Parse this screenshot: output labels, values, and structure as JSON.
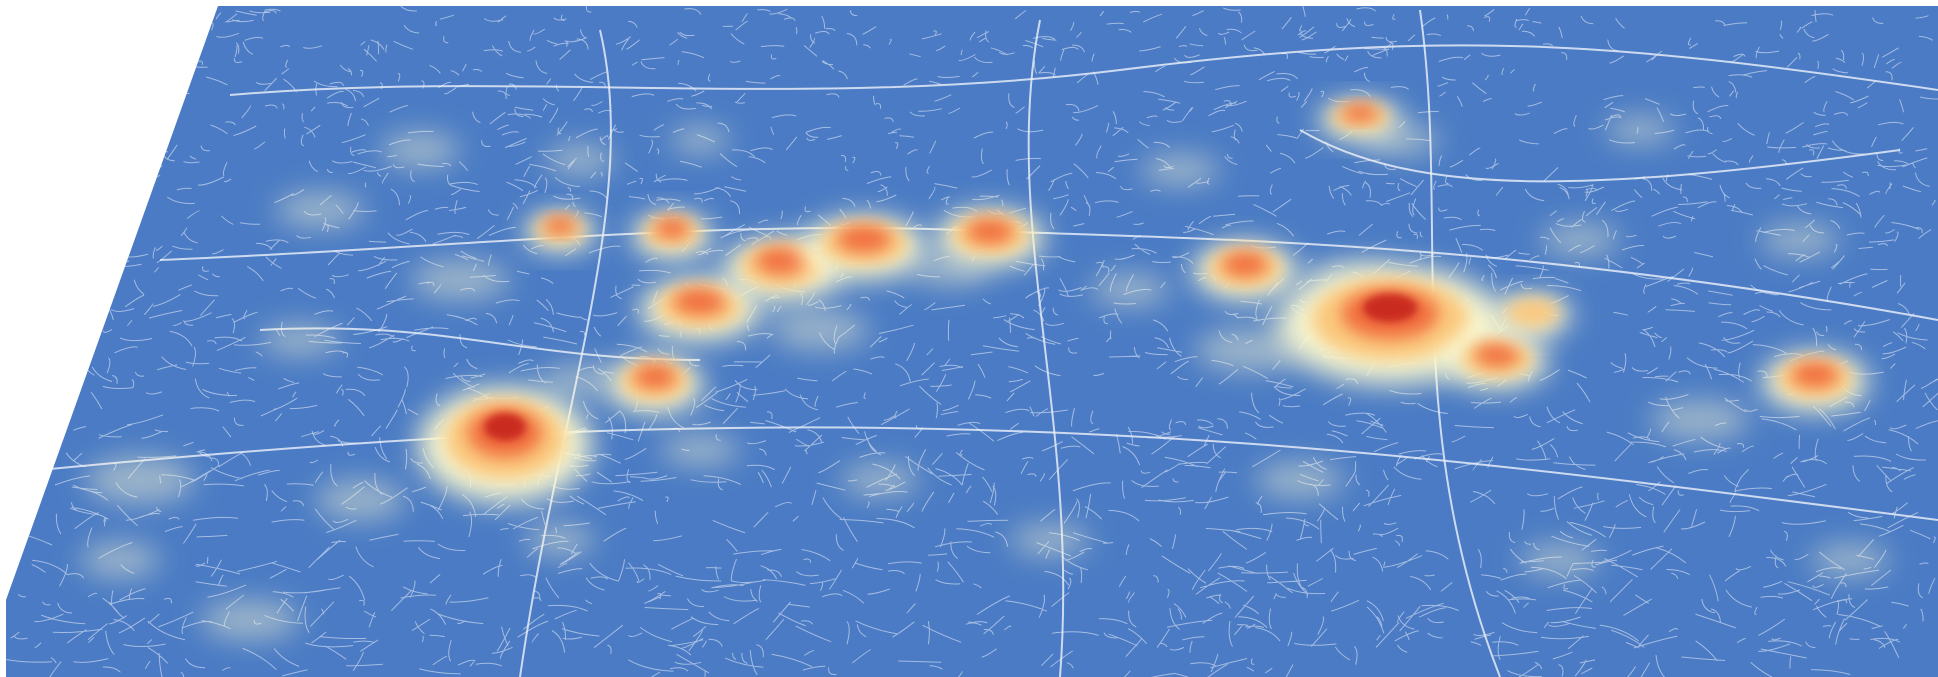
{
  "map": {
    "view": "perspective-3d",
    "base_color": "#4a7bc4",
    "street_color": "#eef3fb",
    "heat_colors": {
      "low": "#fffbd0",
      "mid": "#fbc77a",
      "high": "#f06a3c",
      "peak": "#c8261e"
    },
    "hotspots": [
      {
        "label": "hotspot-1",
        "intensity": 1.0
      },
      {
        "label": "hotspot-2",
        "intensity": 0.55
      },
      {
        "label": "hotspot-3",
        "intensity": 0.65
      },
      {
        "label": "hotspot-4",
        "intensity": 0.7
      },
      {
        "label": "hotspot-5",
        "intensity": 0.7
      },
      {
        "label": "hotspot-6",
        "intensity": 0.75
      },
      {
        "label": "hotspot-7",
        "intensity": 0.75
      },
      {
        "label": "hotspot-8",
        "intensity": 0.55
      },
      {
        "label": "hotspot-9",
        "intensity": 0.55
      },
      {
        "label": "hotspot-10",
        "intensity": 0.6
      },
      {
        "label": "hotspot-11",
        "intensity": 0.95
      },
      {
        "label": "hotspot-12",
        "intensity": 0.6
      },
      {
        "label": "hotspot-13",
        "intensity": 0.45
      },
      {
        "label": "hotspot-14",
        "intensity": 0.6
      }
    ]
  }
}
